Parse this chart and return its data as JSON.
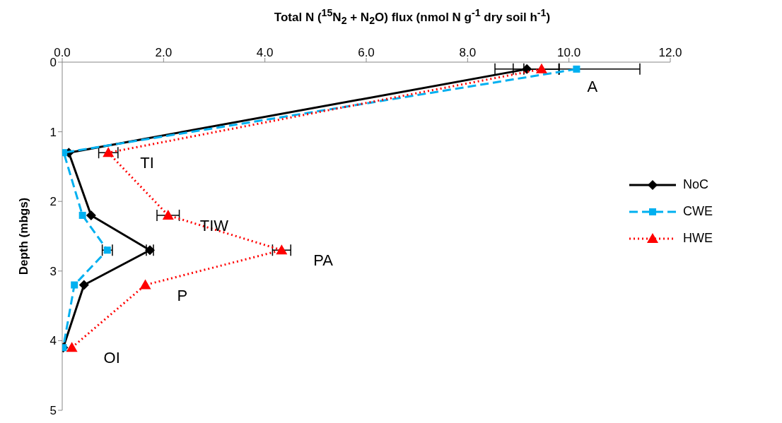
{
  "chart_data": {
    "type": "line",
    "xlabel": "Total N  ($^{15}$N$_{2}$ + N$_{2}$O) flux (nmol N g$^{-1}$ dry soil h$^{-1}$)",
    "ylabel": "Depth (mbgs)",
    "xlim": [
      0,
      12
    ],
    "xticks": [
      {
        "value": 0,
        "label": "0.0"
      },
      {
        "value": 2,
        "label": "2.0"
      },
      {
        "value": 4,
        "label": "4.0"
      },
      {
        "value": 6,
        "label": "6.0"
      },
      {
        "value": 8,
        "label": "8.0"
      },
      {
        "value": 10,
        "label": "10.0"
      },
      {
        "value": 12,
        "label": "12.0"
      }
    ],
    "ylim": [
      5,
      0
    ],
    "yticks": [
      0,
      1,
      2,
      3,
      4,
      5
    ],
    "grid": false,
    "legend": "right",
    "series": [
      {
        "name": "NoC",
        "color": "#000000",
        "marker": "diamond",
        "line_style": "solid",
        "x": [
          9.17,
          0.13,
          0.57,
          1.73,
          0.43,
          0.02
        ],
        "values": [
          0.1,
          1.3,
          2.2,
          2.7,
          3.2,
          4.1
        ],
        "xerrors": [
          0.63,
          null,
          null,
          0.07,
          null,
          null
        ]
      },
      {
        "name": "CWE",
        "color": "#00b0f0",
        "marker": "square",
        "line_style": "dashed",
        "x": [
          10.15,
          0.03,
          0.4,
          0.89,
          0.24,
          0.02
        ],
        "values": [
          0.1,
          1.3,
          2.2,
          2.7,
          3.2,
          4.1
        ],
        "xerrors": [
          1.25,
          null,
          null,
          0.1,
          null,
          null
        ]
      },
      {
        "name": "HWE",
        "color": "#ff0000",
        "marker": "triangle",
        "line_style": "dotted",
        "x": [
          9.46,
          0.91,
          2.09,
          4.33,
          1.64,
          0.19
        ],
        "values": [
          0.1,
          1.3,
          2.2,
          2.7,
          3.2,
          4.1
        ],
        "xerrors": [
          0.35,
          0.19,
          0.22,
          0.18,
          null,
          null
        ]
      }
    ],
    "annotations": [
      {
        "text": "A",
        "x": 10.15,
        "y": 0.1
      },
      {
        "text": "TI",
        "x": 0.91,
        "y": 1.3
      },
      {
        "text": "TIW",
        "x": 2.09,
        "y": 2.2
      },
      {
        "text": "PA",
        "x": 4.33,
        "y": 2.7
      },
      {
        "text": "P",
        "x": 1.64,
        "y": 3.2
      },
      {
        "text": "OI",
        "x": 0.19,
        "y": 4.1
      }
    ]
  }
}
